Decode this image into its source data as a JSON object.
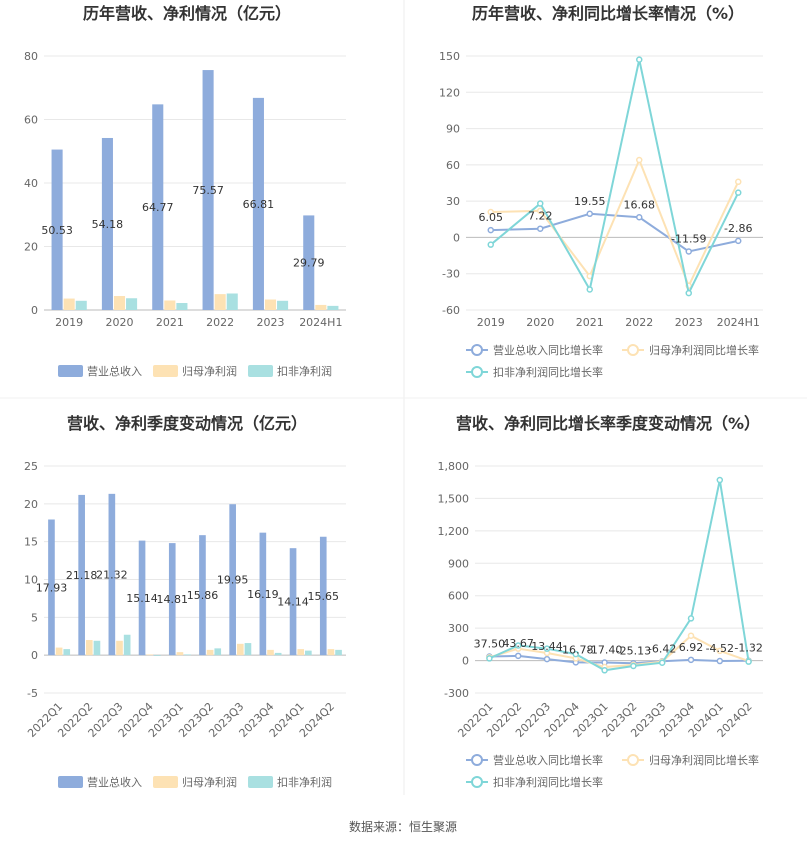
{
  "source": "数据来源：恒生聚源",
  "chart_data": [
    {
      "id": "annual-revenue-profit",
      "type": "bar",
      "title": "历年营收、净利情况（亿元）",
      "categories": [
        "2019",
        "2020",
        "2021",
        "2022",
        "2023",
        "2024H1"
      ],
      "series": [
        {
          "name": "营业总收入",
          "color": "#8eacdc",
          "values": [
            50.53,
            54.18,
            64.77,
            75.57,
            66.81,
            29.79
          ]
        },
        {
          "name": "归母净利润",
          "color": "#fde2b4",
          "values": [
            3.6,
            4.4,
            3.0,
            5.0,
            3.3,
            1.6
          ]
        },
        {
          "name": "扣非净利润",
          "color": "#a9e0e1",
          "values": [
            2.9,
            3.7,
            2.2,
            5.2,
            2.9,
            1.3
          ]
        }
      ],
      "labeled_series": 0,
      "data_labels": [
        "50.53",
        "54.18",
        "64.77",
        "75.57",
        "66.81",
        "29.79"
      ],
      "ylim": [
        0,
        80
      ],
      "yticks": [
        0,
        20,
        40,
        60,
        80
      ],
      "ytick_labels": [
        "0",
        "20",
        "40",
        "60",
        "80"
      ],
      "grid": true,
      "legend": "bottom"
    },
    {
      "id": "annual-growth",
      "type": "line",
      "title": "历年营收、净利同比增长率情况（%）",
      "categories": [
        "2019",
        "2020",
        "2021",
        "2022",
        "2023",
        "2024H1"
      ],
      "series": [
        {
          "name": "营业总收入同比增长率",
          "color": "#8eacdc",
          "values": [
            6.05,
            7.22,
            19.55,
            16.68,
            -11.59,
            -2.86
          ]
        },
        {
          "name": "归母净利润同比增长率",
          "color": "#fde2b4",
          "values": [
            21,
            22,
            -32,
            64,
            -40,
            46
          ]
        },
        {
          "name": "扣非净利润同比增长率",
          "color": "#7fd6d8",
          "values": [
            -6,
            28,
            -43,
            147,
            -46,
            37
          ]
        }
      ],
      "labeled_series": 0,
      "data_labels": [
        "6.05",
        "7.22",
        "19.55",
        "16.68",
        "-11.59",
        "-2.86"
      ],
      "ylim": [
        -60,
        150
      ],
      "yticks": [
        -60,
        -30,
        0,
        30,
        60,
        90,
        120,
        150
      ],
      "ytick_labels": [
        "-60",
        "-30",
        "0",
        "30",
        "60",
        "90",
        "120",
        "150"
      ],
      "grid": true,
      "legend": "bottom"
    },
    {
      "id": "quarterly-revenue-profit",
      "type": "bar",
      "title": "营收、净利季度变动情况（亿元）",
      "categories": [
        "2022Q1",
        "2022Q2",
        "2022Q3",
        "2022Q4",
        "2023Q1",
        "2023Q2",
        "2023Q3",
        "2023Q4",
        "2024Q1",
        "2024Q2"
      ],
      "series": [
        {
          "name": "营业总收入",
          "color": "#8eacdc",
          "values": [
            17.93,
            21.18,
            21.32,
            15.14,
            14.81,
            15.86,
            19.95,
            16.19,
            14.14,
            15.65
          ]
        },
        {
          "name": "归母净利润",
          "color": "#fde2b4",
          "values": [
            1.0,
            2.0,
            1.9,
            0.1,
            0.4,
            0.7,
            1.5,
            0.7,
            0.8,
            0.8
          ]
        },
        {
          "name": "扣非净利润",
          "color": "#a9e0e1",
          "values": [
            0.8,
            1.9,
            2.7,
            -0.1,
            0.1,
            0.9,
            1.6,
            0.3,
            0.6,
            0.7
          ]
        }
      ],
      "labeled_series": 0,
      "data_labels": [
        "17.93",
        "21.18",
        "21.32",
        "15.14",
        "14.81",
        "15.86",
        "19.95",
        "16.19",
        "14.14",
        "15.65"
      ],
      "ylim": [
        -5,
        25
      ],
      "yticks": [
        -5,
        0,
        5,
        10,
        15,
        20,
        25
      ],
      "ytick_labels": [
        "-5",
        "0",
        "5",
        "10",
        "15",
        "20",
        "25"
      ],
      "grid": true,
      "legend": "bottom"
    },
    {
      "id": "quarterly-growth",
      "type": "line",
      "title": "营收、净利同比增长率季度变动情况（%）",
      "categories": [
        "2022Q1",
        "2022Q2",
        "2022Q3",
        "2022Q4",
        "2023Q1",
        "2023Q2",
        "2023Q3",
        "2023Q4",
        "2024Q1",
        "2024Q2"
      ],
      "series": [
        {
          "name": "营业总收入同比增长率",
          "color": "#8eacdc",
          "values": [
            37.5,
            43.67,
            13.44,
            -16.78,
            -17.4,
            -25.13,
            -6.42,
            6.92,
            -4.52,
            -1.32
          ]
        },
        {
          "name": "归母净利润同比增长率",
          "color": "#fde2b4",
          "values": [
            30,
            110,
            70,
            20,
            -60,
            -40,
            -10,
            230,
            90,
            -5
          ]
        },
        {
          "name": "扣非净利润同比增长率",
          "color": "#7fd6d8",
          "values": [
            20,
            140,
            110,
            60,
            -90,
            -50,
            -20,
            390,
            1670,
            -10
          ]
        }
      ],
      "labeled_series": 0,
      "data_labels": [
        "37.50",
        "43.67",
        "13.44",
        "-16.78",
        "-17.40",
        "-25.13",
        "-6.42",
        "6.92",
        "-4.52",
        "-1.32"
      ],
      "ylim": [
        -300,
        1800
      ],
      "yticks": [
        -300,
        0,
        300,
        600,
        900,
        1200,
        1500,
        1800
      ],
      "ytick_labels": [
        "-300",
        "0",
        "300",
        "600",
        "900",
        "1,200",
        "1,500",
        "1,800"
      ],
      "grid": true,
      "legend": "bottom"
    }
  ]
}
